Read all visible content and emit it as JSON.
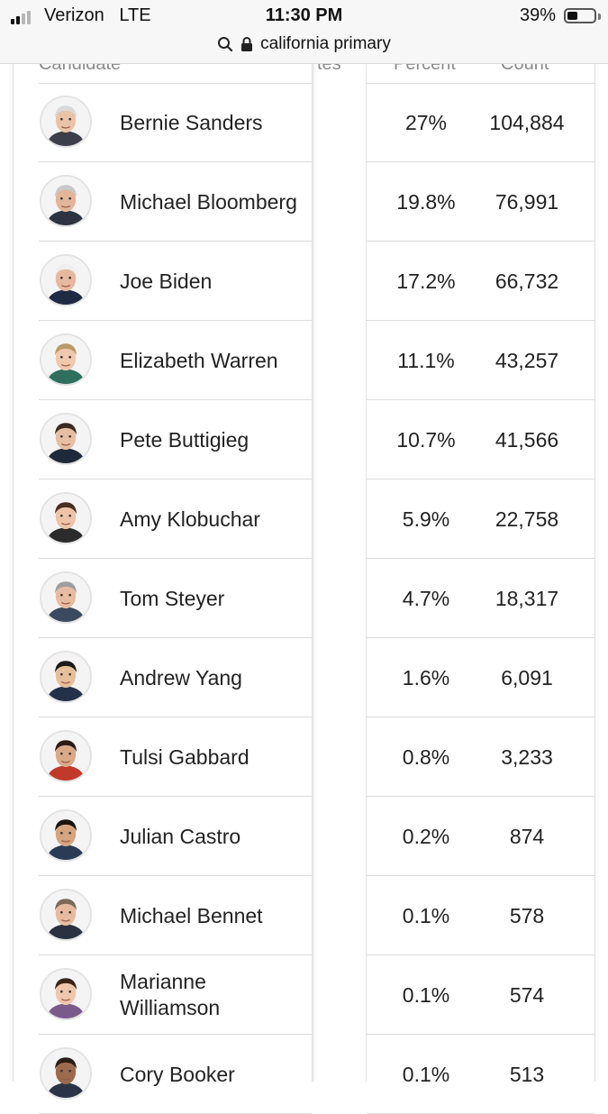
{
  "status_bar": {
    "carrier": "Verizon",
    "network": "LTE",
    "time": "11:30 PM",
    "battery_percent": "39%",
    "battery_level": 0.39,
    "signal_bars_filled": 2,
    "signal_bars_total": 4
  },
  "address_bar": {
    "search_icon": "search-icon",
    "lock_icon": "lock-icon",
    "query": "california primary"
  },
  "table": {
    "headers": {
      "candidate": "Candidate",
      "delegates_partial": "tes",
      "percent": "Percent",
      "count": "Count"
    },
    "rows": [
      {
        "name": "Bernie Sanders",
        "percent": "27%",
        "count": "104,884",
        "skin": "#e9c3a8",
        "hair": "#d9d9d9",
        "shirt": "#3a3f4b"
      },
      {
        "name": "Michael Bloomberg",
        "percent": "19.8%",
        "count": "76,991",
        "skin": "#e2b59b",
        "hair": "#c8c8c8",
        "shirt": "#2c3442"
      },
      {
        "name": "Joe Biden",
        "percent": "17.2%",
        "count": "66,732",
        "skin": "#e6b8a0",
        "hair": "#eeeeee",
        "shirt": "#1f2a44"
      },
      {
        "name": "Elizabeth Warren",
        "percent": "11.1%",
        "count": "43,257",
        "skin": "#efc8ad",
        "hair": "#b99a6a",
        "shirt": "#2f6f5e"
      },
      {
        "name": "Pete Buttigieg",
        "percent": "10.7%",
        "count": "41,566",
        "skin": "#e6bea4",
        "hair": "#3b2a1f",
        "shirt": "#1e2a3a"
      },
      {
        "name": "Amy Klobuchar",
        "percent": "5.9%",
        "count": "22,758",
        "skin": "#eec4a9",
        "hair": "#4a2e22",
        "shirt": "#2b2b2b"
      },
      {
        "name": "Tom Steyer",
        "percent": "4.7%",
        "count": "18,317",
        "skin": "#e7bca2",
        "hair": "#9e9e9e",
        "shirt": "#3b4a5e"
      },
      {
        "name": "Andrew Yang",
        "percent": "1.6%",
        "count": "6,091",
        "skin": "#e6c09b",
        "hair": "#1e1a18",
        "shirt": "#23324a"
      },
      {
        "name": "Tulsi Gabbard",
        "percent": "0.8%",
        "count": "3,233",
        "skin": "#d9a98a",
        "hair": "#2a1b14",
        "shirt": "#c0392b"
      },
      {
        "name": "Julian Castro",
        "percent": "0.2%",
        "count": "874",
        "skin": "#d6a47f",
        "hair": "#1b1512",
        "shirt": "#2a3b55"
      },
      {
        "name": "Michael Bennet",
        "percent": "0.1%",
        "count": "578",
        "skin": "#e7bba0",
        "hair": "#7a6a5a",
        "shirt": "#2a3140"
      },
      {
        "name": "Marianne Williamson",
        "percent": "0.1%",
        "count": "574",
        "skin": "#efc7ad",
        "hair": "#3a2418",
        "shirt": "#7a5a8a"
      },
      {
        "name": "Cory Booker",
        "percent": "0.1%",
        "count": "513",
        "skin": "#9c6b4e",
        "hair": "#2a1e18",
        "shirt": "#2b3346"
      }
    ]
  }
}
